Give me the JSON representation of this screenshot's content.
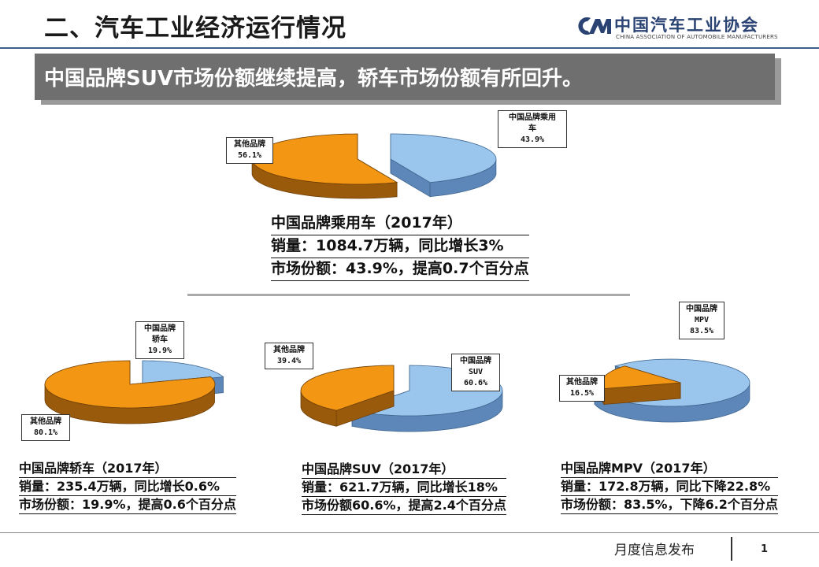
{
  "header": {
    "title": "二、汽车工业经济运行情况",
    "logo_cn": "中国汽车工业协会",
    "logo_en": "CHINA ASSOCIATION OF AUTOMOBILE MANUFACTURERS"
  },
  "banner": {
    "text": "中国品牌SUV市场份额继续提高，轿车市场份额有所回升。"
  },
  "colors": {
    "china_brand": "#9ac6ee",
    "other_brand": "#f29613",
    "banner_bg": "#6f6f6f"
  },
  "chart_data": [
    {
      "type": "pie",
      "id": "passenger",
      "slices": [
        {
          "label_lines": [
            "中国品牌乘用",
            "车"
          ],
          "pct_text": "43.9%",
          "value": 43.9,
          "role": "china"
        },
        {
          "label_lines": [
            "其他品牌"
          ],
          "pct_text": "56.1%",
          "value": 56.1,
          "role": "other"
        }
      ],
      "info": [
        "中国品牌乘用车（2017年）",
        "销量：1084.7万辆，同比增长3%",
        "市场份额：43.9%，提高0.7个百分点"
      ]
    },
    {
      "type": "pie",
      "id": "sedan",
      "slices": [
        {
          "label_lines": [
            "中国品牌",
            "轿车"
          ],
          "pct_text": "19.9%",
          "value": 19.9,
          "role": "china"
        },
        {
          "label_lines": [
            "其他品牌"
          ],
          "pct_text": "80.1%",
          "value": 80.1,
          "role": "other"
        }
      ],
      "info": [
        "中国品牌轿车（2017年）",
        "销量：235.4万辆，同比增长0.6%",
        "市场份额：19.9%，提高0.6个百分点"
      ]
    },
    {
      "type": "pie",
      "id": "suv",
      "slices": [
        {
          "label_lines": [
            "中国品牌",
            "SUV"
          ],
          "pct_text": "60.6%",
          "value": 60.6,
          "role": "china"
        },
        {
          "label_lines": [
            "其他品牌"
          ],
          "pct_text": "39.4%",
          "value": 39.4,
          "role": "other"
        }
      ],
      "info": [
        "中国品牌SUV（2017年）",
        "销量：621.7万辆，同比增长18%",
        "市场份额60.6%，提高2.4个百分点"
      ]
    },
    {
      "type": "pie",
      "id": "mpv",
      "slices": [
        {
          "label_lines": [
            "中国品牌",
            "MPV"
          ],
          "pct_text": "83.5%",
          "value": 83.5,
          "role": "china"
        },
        {
          "label_lines": [
            "其他品牌"
          ],
          "pct_text": "16.5%",
          "value": 16.5,
          "role": "other"
        }
      ],
      "info": [
        "中国品牌MPV（2017年）",
        "销量：172.8万辆，同比下降22.8%",
        "市场份额：83.5%，下降6.2个百分点"
      ]
    }
  ],
  "footer": {
    "text": "月度信息发布",
    "page": "1"
  }
}
